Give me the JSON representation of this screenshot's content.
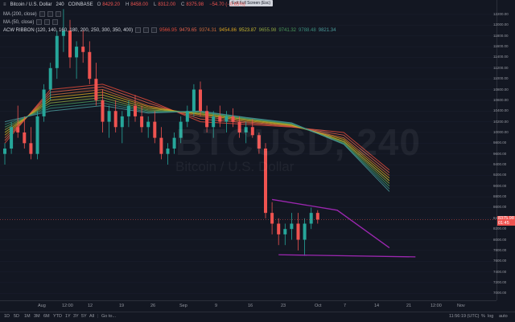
{
  "symbol": {
    "title": "Bitcoin / U.S. Dollar",
    "interval": "240",
    "exchange": "COINBASE",
    "open_label": "O",
    "open": "8429.20",
    "high_label": "H",
    "high": "8458.00",
    "low_label": "L",
    "low": "8312.00",
    "close_label": "C",
    "close": "8375.98",
    "change": "−54.70 (−0.65%)"
  },
  "indicators": [
    {
      "label": "MA (200, close)",
      "values": []
    },
    {
      "label": "MA (50, close)",
      "values": []
    },
    {
      "label": "ACW RIBBON (120, 140, 160, 180, 200, 250, 300, 350, 400)",
      "values": [
        "9566.95",
        "9479.65",
        "9374.31",
        "9454.86",
        "9523.87",
        "9655.98",
        "9741.32",
        "9788.48",
        "9821.34"
      ],
      "colors": [
        "#e04a3a",
        "#e0604a",
        "#c86a3a",
        "#d4a020",
        "#c8b830",
        "#8aa040",
        "#4a9a5a",
        "#3a8a7a",
        "#4a9a9a"
      ]
    }
  ],
  "watermark": {
    "symbol": "BTCUSD, 240",
    "name": "Bitcoin / U.S. Dollar"
  },
  "tooltip": "Exit Full Screen (Esc)",
  "price_axis": [
    "12200.00",
    "12000.00",
    "11800.00",
    "11600.00",
    "11400.00",
    "11200.00",
    "11000.00",
    "10800.00",
    "10600.00",
    "10400.00",
    "10200.00",
    "10000.00",
    "9800.00",
    "9600.00",
    "9400.00",
    "9200.00",
    "9000.00",
    "8800.00",
    "8600.00",
    "8400.00",
    "8200.00",
    "8000.00",
    "7800.00",
    "7600.00",
    "7400.00",
    "7200.00",
    "7000.00"
  ],
  "current_price": "8375.98",
  "current_price_sub": "01:45",
  "time_axis": [
    "Aug",
    "12:00",
    "12",
    "19",
    "26",
    "Sep",
    "9",
    "16",
    "23",
    "Oct",
    "7",
    "14",
    "21",
    "12:00",
    "Nov"
  ],
  "bottom_bar": {
    "ranges": [
      "1D",
      "5D",
      "1M",
      "3M",
      "6M",
      "YTD",
      "1Y",
      "3Y",
      "5Y",
      "All"
    ],
    "goto": "Go to...",
    "clock": "11:56:19 (UTC)",
    "pct": "%",
    "log": "log",
    "auto": "auto"
  },
  "chart_data": {
    "type": "candlestick",
    "x": [
      "Aug",
      "12:00",
      "12",
      "19",
      "26",
      "Sep",
      "9",
      "16",
      "23",
      "Oct",
      "7",
      "14",
      "21",
      "12:00",
      "Nov"
    ],
    "ylim": [
      6900,
      12350
    ],
    "candles": [
      [
        9600,
        9800,
        9400,
        9700
      ],
      [
        9700,
        10200,
        9600,
        10100
      ],
      [
        10100,
        10500,
        9900,
        10000
      ],
      [
        10000,
        10300,
        9700,
        9800
      ],
      [
        9800,
        10100,
        9500,
        9600
      ],
      [
        9600,
        10400,
        9500,
        10300
      ],
      [
        10300,
        10900,
        10200,
        10800
      ],
      [
        10800,
        11300,
        10600,
        11200
      ],
      [
        11200,
        11900,
        11000,
        11800
      ],
      [
        11800,
        12300,
        11500,
        11900
      ],
      [
        11900,
        12100,
        11200,
        11400
      ],
      [
        11400,
        11700,
        11000,
        11600
      ],
      [
        11600,
        11900,
        11300,
        11500
      ],
      [
        11500,
        11700,
        10900,
        11000
      ],
      [
        11000,
        11300,
        10500,
        10600
      ],
      [
        10600,
        10800,
        10000,
        10200
      ],
      [
        10200,
        10500,
        9900,
        10400
      ],
      [
        10400,
        10600,
        10000,
        10100
      ],
      [
        10100,
        10400,
        9800,
        10300
      ],
      [
        10300,
        10600,
        10100,
        10500
      ],
      [
        10500,
        10700,
        10200,
        10300
      ],
      [
        10300,
        10500,
        10000,
        10100
      ],
      [
        10100,
        10300,
        9900,
        10200
      ],
      [
        10200,
        10400,
        9800,
        9900
      ],
      [
        9900,
        10100,
        9500,
        9600
      ],
      [
        9600,
        9800,
        9400,
        9700
      ],
      [
        9700,
        10000,
        9600,
        9900
      ],
      [
        9900,
        10300,
        9800,
        10200
      ],
      [
        10200,
        10500,
        10100,
        10400
      ],
      [
        10400,
        10900,
        10300,
        10800
      ],
      [
        10800,
        10950,
        10300,
        10400
      ],
      [
        10400,
        10500,
        10000,
        10100
      ],
      [
        10100,
        10400,
        9900,
        10300
      ],
      [
        10300,
        10500,
        10100,
        10200
      ],
      [
        10200,
        10400,
        10000,
        10300
      ],
      [
        10300,
        10450,
        10100,
        10200
      ],
      [
        10200,
        10300,
        9900,
        10000
      ],
      [
        10000,
        10200,
        9800,
        10100
      ],
      [
        10100,
        10250,
        9900,
        9950
      ],
      [
        9950,
        10000,
        9600,
        9700
      ],
      [
        9700,
        9800,
        8400,
        8500
      ],
      [
        8500,
        8700,
        8100,
        8300
      ],
      [
        8300,
        8400,
        7900,
        8100
      ],
      [
        8100,
        8300,
        7900,
        8200
      ],
      [
        8200,
        8500,
        8000,
        8300
      ],
      [
        8300,
        8500,
        7800,
        8000
      ],
      [
        8000,
        8400,
        7700,
        8300
      ],
      [
        8300,
        8600,
        8200,
        8500
      ],
      [
        8500,
        8550,
        8300,
        8376
      ]
    ],
    "ribbon": [
      [
        9800,
        10800,
        10900,
        10600,
        10200,
        10150,
        10100,
        10000,
        9300
      ],
      [
        9850,
        10750,
        10850,
        10550,
        10250,
        10180,
        10110,
        9950,
        9250
      ],
      [
        9900,
        10700,
        10800,
        10500,
        10300,
        10200,
        10120,
        9900,
        9200
      ],
      [
        9950,
        10650,
        10750,
        10480,
        10330,
        10220,
        10130,
        9870,
        9150
      ],
      [
        10000,
        10600,
        10700,
        10450,
        10350,
        10240,
        10140,
        9840,
        9100
      ],
      [
        10050,
        10550,
        10650,
        10420,
        10370,
        10250,
        10150,
        9820,
        9050
      ],
      [
        10100,
        10500,
        10600,
        10400,
        10380,
        10260,
        10160,
        9800,
        9000
      ],
      [
        10150,
        10450,
        10550,
        10380,
        10390,
        10270,
        10170,
        9790,
        8950
      ],
      [
        10200,
        10400,
        10500,
        10360,
        10400,
        10280,
        10180,
        9780,
        8900
      ]
    ],
    "trendlines": [
      {
        "name": "upper",
        "color": "#9c27b0",
        "points": [
          [
            41,
            8750
          ],
          [
            51,
            8550
          ],
          [
            59,
            7850
          ]
        ]
      },
      {
        "name": "lower",
        "color": "#9c27b0",
        "points": [
          [
            42,
            7720
          ],
          [
            63,
            7680
          ]
        ]
      }
    ]
  }
}
